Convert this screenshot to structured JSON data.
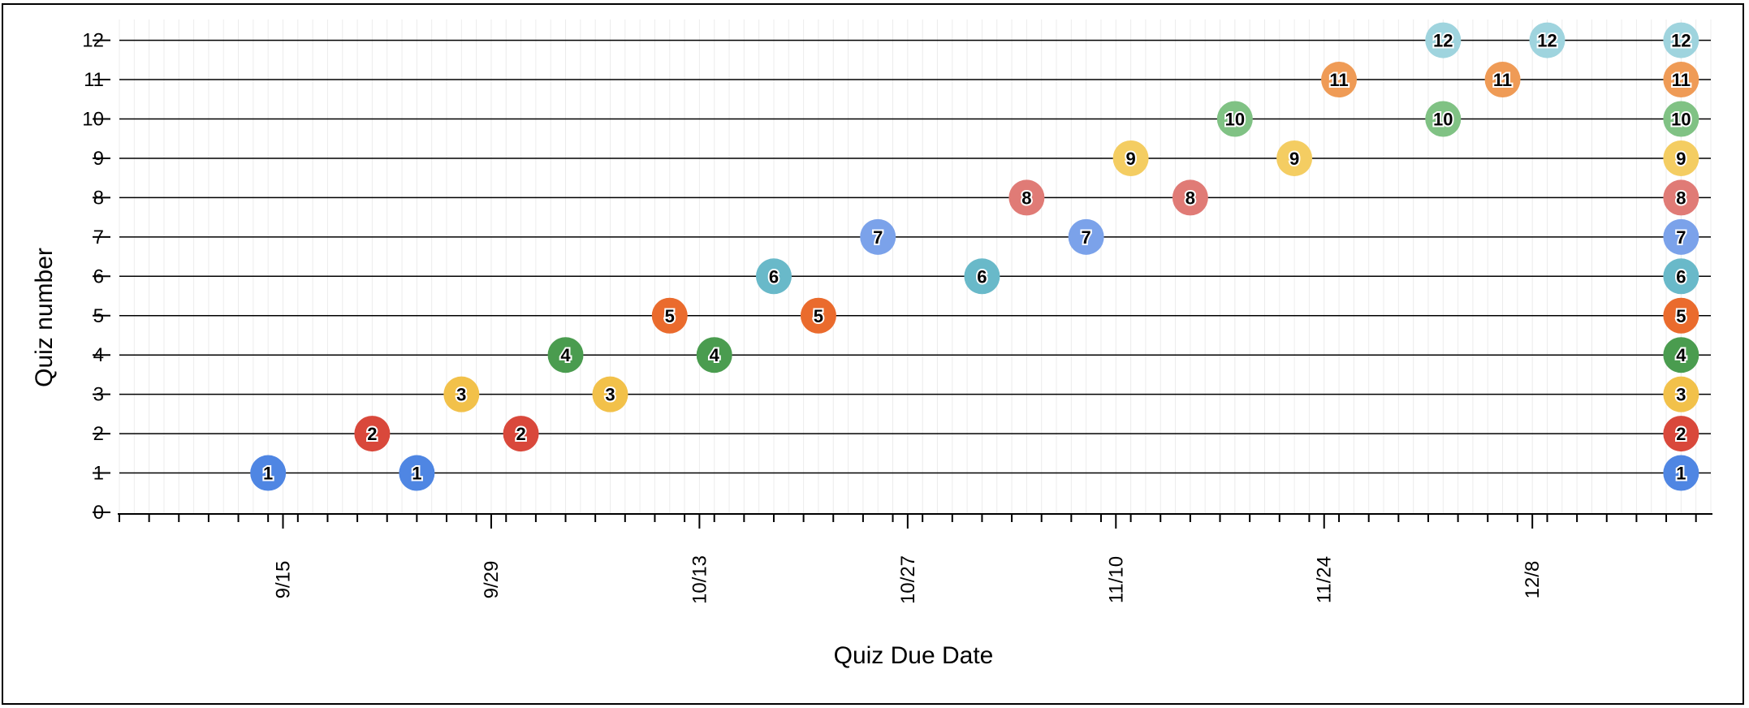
{
  "chart_data": {
    "type": "scatter",
    "title": "",
    "xlabel": "Quiz Due Date",
    "ylabel": "Quiz number",
    "ylim": [
      0,
      12
    ],
    "yticks": [
      0,
      1,
      2,
      3,
      4,
      5,
      6,
      7,
      8,
      9,
      10,
      11,
      12
    ],
    "xlim": [
      "2024-09-04",
      "2024-12-20"
    ],
    "xtick_labels": [
      {
        "date": "2024-09-15",
        "label": "9/15"
      },
      {
        "date": "2024-09-29",
        "label": "9/29"
      },
      {
        "date": "2024-10-13",
        "label": "10/13"
      },
      {
        "date": "2024-10-27",
        "label": "10/27"
      },
      {
        "date": "2024-11-10",
        "label": "11/10"
      },
      {
        "date": "2024-11-24",
        "label": "11/24"
      },
      {
        "date": "2024-12-08",
        "label": "12/8"
      }
    ],
    "grid": "horizontal lines at each quiz number; faint vertical gridlines per day",
    "colors": {
      "1": "#4f86e3",
      "2": "#d9483b",
      "3": "#f2c14a",
      "4": "#4a9c4f",
      "5": "#ea6b2d",
      "6": "#69b9c9",
      "7": "#7ba2ea",
      "8": "#e07b76",
      "9": "#f4cd62",
      "10": "#80c284",
      "11": "#ef9b56",
      "12": "#9fd4de"
    },
    "points": [
      {
        "quiz": 1,
        "date": "2024-09-14"
      },
      {
        "quiz": 1,
        "date": "2024-09-24"
      },
      {
        "quiz": 1,
        "date": "2024-12-18"
      },
      {
        "quiz": 2,
        "date": "2024-09-21"
      },
      {
        "quiz": 2,
        "date": "2024-10-01"
      },
      {
        "quiz": 2,
        "date": "2024-12-18"
      },
      {
        "quiz": 3,
        "date": "2024-09-27"
      },
      {
        "quiz": 3,
        "date": "2024-10-07"
      },
      {
        "quiz": 3,
        "date": "2024-12-18"
      },
      {
        "quiz": 4,
        "date": "2024-10-04"
      },
      {
        "quiz": 4,
        "date": "2024-10-14"
      },
      {
        "quiz": 4,
        "date": "2024-12-18"
      },
      {
        "quiz": 5,
        "date": "2024-10-11"
      },
      {
        "quiz": 5,
        "date": "2024-10-21"
      },
      {
        "quiz": 5,
        "date": "2024-12-18"
      },
      {
        "quiz": 6,
        "date": "2024-10-18"
      },
      {
        "quiz": 6,
        "date": "2024-11-01"
      },
      {
        "quiz": 6,
        "date": "2024-12-18"
      },
      {
        "quiz": 7,
        "date": "2024-10-25"
      },
      {
        "quiz": 7,
        "date": "2024-11-08"
      },
      {
        "quiz": 7,
        "date": "2024-12-18"
      },
      {
        "quiz": 8,
        "date": "2024-11-04"
      },
      {
        "quiz": 8,
        "date": "2024-11-15"
      },
      {
        "quiz": 8,
        "date": "2024-12-18"
      },
      {
        "quiz": 9,
        "date": "2024-11-11"
      },
      {
        "quiz": 9,
        "date": "2024-11-22"
      },
      {
        "quiz": 9,
        "date": "2024-12-18"
      },
      {
        "quiz": 10,
        "date": "2024-11-18"
      },
      {
        "quiz": 10,
        "date": "2024-12-02"
      },
      {
        "quiz": 10,
        "date": "2024-12-18"
      },
      {
        "quiz": 11,
        "date": "2024-11-25"
      },
      {
        "quiz": 11,
        "date": "2024-12-06"
      },
      {
        "quiz": 11,
        "date": "2024-12-18"
      },
      {
        "quiz": 12,
        "date": "2024-12-02"
      },
      {
        "quiz": 12,
        "date": "2024-12-09"
      },
      {
        "quiz": 12,
        "date": "2024-12-18"
      }
    ]
  }
}
